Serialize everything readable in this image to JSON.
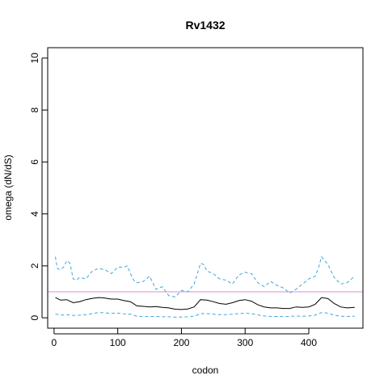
{
  "chart_data": {
    "type": "line",
    "title": "Rv1432",
    "xlabel": "codon",
    "ylabel": "omega (dN/dS)",
    "xlim": [
      -10,
      485
    ],
    "ylim": [
      -0.4,
      10.4
    ],
    "x_ticks": [
      0,
      100,
      200,
      300,
      400
    ],
    "y_ticks": [
      0,
      2,
      4,
      6,
      8,
      10
    ],
    "reference_line": {
      "y": 1,
      "color": "#d98cd9"
    },
    "series": [
      {
        "role": "estimate",
        "style": "solid",
        "color": "#000000",
        "x": [
          2,
          10,
          20,
          30,
          40,
          50,
          60,
          70,
          80,
          90,
          100,
          110,
          120,
          130,
          140,
          150,
          160,
          170,
          180,
          190,
          200,
          210,
          220,
          230,
          240,
          250,
          260,
          270,
          280,
          290,
          300,
          310,
          320,
          330,
          340,
          350,
          360,
          370,
          380,
          390,
          400,
          410,
          420,
          430,
          440,
          450,
          460,
          472
        ],
        "y": [
          0.78,
          0.68,
          0.7,
          0.58,
          0.62,
          0.7,
          0.75,
          0.78,
          0.76,
          0.72,
          0.72,
          0.66,
          0.62,
          0.46,
          0.44,
          0.42,
          0.43,
          0.4,
          0.38,
          0.33,
          0.32,
          0.34,
          0.42,
          0.7,
          0.68,
          0.62,
          0.55,
          0.52,
          0.58,
          0.66,
          0.7,
          0.64,
          0.5,
          0.42,
          0.38,
          0.38,
          0.36,
          0.36,
          0.42,
          0.4,
          0.42,
          0.52,
          0.78,
          0.74,
          0.55,
          0.42,
          0.38,
          0.4
        ]
      },
      {
        "role": "upper bound",
        "style": "dashed",
        "color": "#3ea6dc",
        "x": [
          2,
          5,
          10,
          15,
          20,
          25,
          30,
          35,
          40,
          50,
          60,
          70,
          80,
          90,
          100,
          110,
          115,
          120,
          125,
          130,
          140,
          150,
          160,
          170,
          180,
          190,
          200,
          210,
          220,
          230,
          235,
          240,
          250,
          260,
          270,
          280,
          290,
          300,
          310,
          320,
          330,
          340,
          350,
          360,
          370,
          380,
          390,
          400,
          410,
          415,
          420,
          425,
          430,
          440,
          450,
          460,
          472
        ],
        "y": [
          2.35,
          1.9,
          1.85,
          1.95,
          2.2,
          2.1,
          1.5,
          1.45,
          1.55,
          1.5,
          1.8,
          1.9,
          1.85,
          1.7,
          1.95,
          1.95,
          2.0,
          1.7,
          1.45,
          1.35,
          1.4,
          1.6,
          1.1,
          1.2,
          0.85,
          0.8,
          1.05,
          1.0,
          1.3,
          2.1,
          2.05,
          1.8,
          1.7,
          1.5,
          1.45,
          1.3,
          1.65,
          1.75,
          1.7,
          1.35,
          1.2,
          1.4,
          1.25,
          1.15,
          0.95,
          1.1,
          1.3,
          1.5,
          1.6,
          1.9,
          2.35,
          2.2,
          2.05,
          1.55,
          1.3,
          1.35,
          1.6
        ]
      },
      {
        "role": "lower bound",
        "style": "dashed",
        "color": "#3ea6dc",
        "x": [
          2,
          10,
          20,
          30,
          40,
          50,
          60,
          70,
          80,
          90,
          100,
          110,
          120,
          130,
          140,
          150,
          160,
          170,
          180,
          190,
          200,
          210,
          220,
          230,
          240,
          250,
          260,
          270,
          280,
          290,
          300,
          310,
          320,
          330,
          340,
          350,
          360,
          370,
          380,
          390,
          400,
          410,
          420,
          430,
          440,
          450,
          460,
          472
        ],
        "y": [
          0.15,
          0.1,
          0.12,
          0.09,
          0.1,
          0.12,
          0.16,
          0.2,
          0.19,
          0.17,
          0.18,
          0.15,
          0.14,
          0.06,
          0.05,
          0.05,
          0.05,
          0.04,
          0.04,
          0.03,
          0.03,
          0.04,
          0.06,
          0.16,
          0.16,
          0.14,
          0.12,
          0.12,
          0.14,
          0.16,
          0.18,
          0.16,
          0.11,
          0.07,
          0.05,
          0.05,
          0.05,
          0.05,
          0.07,
          0.06,
          0.07,
          0.1,
          0.2,
          0.18,
          0.1,
          0.06,
          0.05,
          0.06
        ]
      }
    ]
  }
}
